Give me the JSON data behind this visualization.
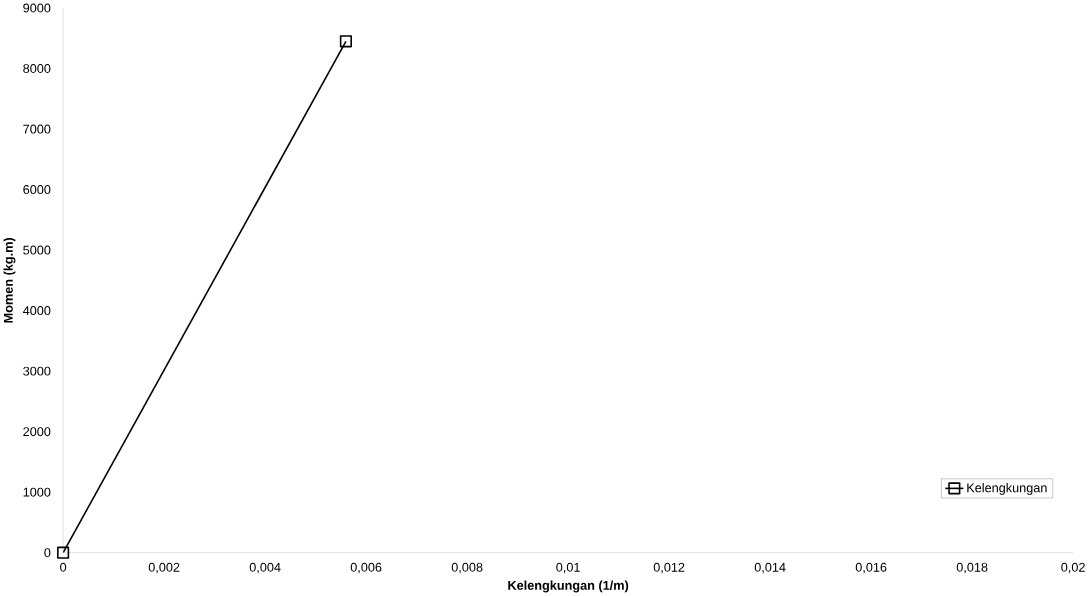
{
  "chart_data": {
    "type": "line",
    "xlabel": "Kelengkungan (1/m)",
    "ylabel": "Momen (kg.m)",
    "series": [
      {
        "name": "Kelengkungan",
        "color": "#000000",
        "x": [
          0,
          0.0056
        ],
        "values": [
          0,
          8450
        ]
      }
    ],
    "marker": "square",
    "legend": "bottom right",
    "grid": false,
    "xlim": [
      0,
      0.02
    ],
    "ylim": [
      0,
      9000
    ],
    "xticks": [
      0,
      {
        "value": 0.002,
        "label": "0,002"
      },
      {
        "value": 0.004,
        "label": "0,004"
      },
      {
        "value": 0.006,
        "label": "0,006"
      },
      {
        "value": 0.008,
        "label": "0,008"
      },
      {
        "value": 0.01,
        "label": "0,01"
      },
      {
        "value": 0.012,
        "label": "0,012"
      },
      {
        "value": 0.014,
        "label": "0,014"
      },
      {
        "value": 0.016,
        "label": "0,016"
      },
      {
        "value": 0.018,
        "label": "0,018"
      },
      {
        "value": 0.02,
        "label": "0,02"
      }
    ],
    "yticks": [
      0,
      1000,
      2000,
      3000,
      4000,
      5000,
      6000,
      7000,
      8000,
      9000
    ]
  }
}
